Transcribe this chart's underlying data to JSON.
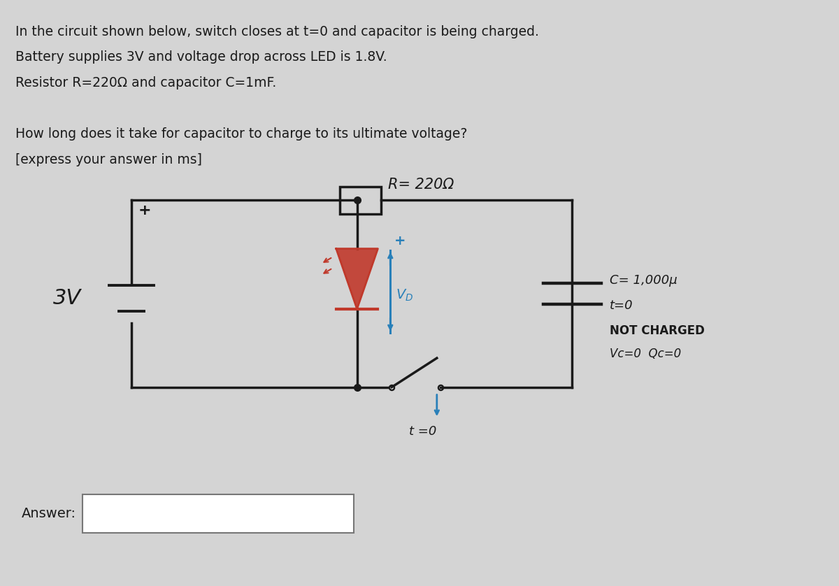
{
  "bg_color": "#d4d4d4",
  "text_color": "#1a1a1a",
  "title_lines": [
    "In the circuit shown below, switch closes at t=0 and capacitor is being charged.",
    "Battery supplies 3V and voltage drop across LED is 1.8V.",
    "Resistor R=220Ω and capacitor C=1mF.",
    "",
    "How long does it take for capacitor to charge to its ultimate voltage?",
    "[express your answer in ms]"
  ],
  "circuit_wire_color": "#1a1a1a",
  "led_color": "#c0392b",
  "vd_color": "#2980b9",
  "r_label": "R= 220Ω",
  "battery_label": "3V",
  "cap_label": "C= 1,000μ",
  "t0_label1": "t=0",
  "t0_label2": "t =0",
  "not_charged_label": "NOT CHARGED",
  "vc_label": "Vc=0  Qc=0",
  "answer_label": "Answer:",
  "plus_label": "+"
}
